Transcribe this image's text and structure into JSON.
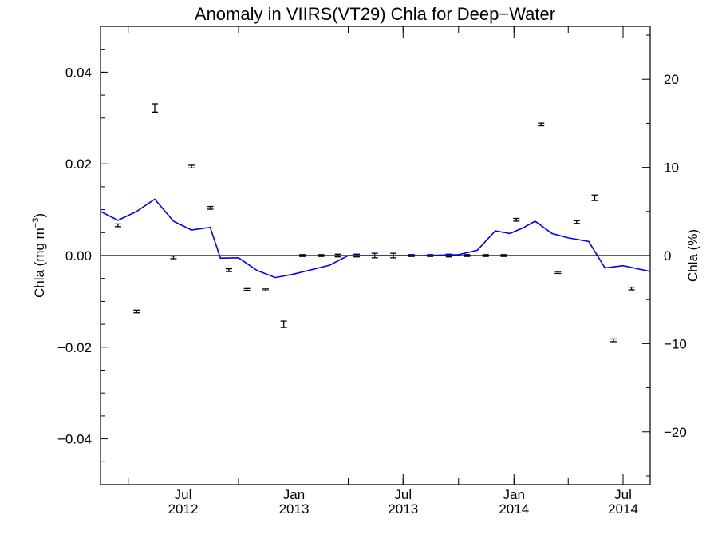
{
  "chart_data": {
    "type": "line",
    "title": "Anomaly in VIIRS(VT29) Chla for Deep−Water",
    "ylabel_left": {
      "base": "Chla (mg m",
      "sup": "−3",
      "close": ")"
    },
    "ylabel_right": "Chla (%)",
    "x_axis": {
      "range": [
        "2012-02-15",
        "2014-08-15"
      ],
      "tick_labels": [
        {
          "month": "Jul",
          "year": "2012",
          "date": "2012-07-01"
        },
        {
          "month": "Jan",
          "year": "2013",
          "date": "2013-01-01"
        },
        {
          "month": "Jul",
          "year": "2013",
          "date": "2013-07-01"
        },
        {
          "month": "Jan",
          "year": "2014",
          "date": "2014-01-01"
        },
        {
          "month": "Jul",
          "year": "2014",
          "date": "2014-07-01"
        }
      ],
      "minor_tick_dates": [
        "2012-04-01",
        "2012-07-01",
        "2012-10-01",
        "2013-01-01",
        "2013-04-01",
        "2013-07-01",
        "2013-10-01",
        "2014-01-01",
        "2014-04-01",
        "2014-07-01"
      ]
    },
    "y_left": {
      "range": [
        -0.05,
        0.05
      ],
      "ticks": [
        -0.04,
        -0.02,
        0.0,
        0.02,
        0.04
      ],
      "tick_labels": [
        "−0.04",
        "−0.02",
        "0.00",
        "0.02",
        "0.04"
      ]
    },
    "y_right": {
      "range": [
        -26,
        26
      ],
      "ticks": [
        -20,
        -10,
        0,
        10,
        20
      ],
      "tick_labels": [
        "−20",
        "−10",
        "0",
        "10",
        "20"
      ]
    },
    "zero_line": true,
    "series": [
      {
        "kind": "error_bars",
        "axis": "left",
        "color": "#000000",
        "points": [
          {
            "date": "2012-03-15",
            "y": 0.0066,
            "err": 0.0003
          },
          {
            "date": "2012-04-15",
            "y": -0.0122,
            "err": 0.0003
          },
          {
            "date": "2012-05-15",
            "y": 0.0322,
            "err": 0.0009
          },
          {
            "date": "2012-06-15",
            "y": -0.0004,
            "err": 0.0003
          },
          {
            "date": "2012-07-15",
            "y": 0.0194,
            "err": 0.0003
          },
          {
            "date": "2012-08-15",
            "y": 0.0104,
            "err": 0.0003
          },
          {
            "date": "2012-09-15",
            "y": -0.0032,
            "err": 0.0003
          },
          {
            "date": "2012-10-15",
            "y": -0.0074,
            "err": 0.0002
          },
          {
            "date": "2012-11-15",
            "y": -0.0075,
            "err": 0.0002
          },
          {
            "date": "2012-12-15",
            "y": -0.015,
            "err": 0.0007
          },
          {
            "date": "2013-01-15",
            "y": 0.0,
            "err": 0.0002
          },
          {
            "date": "2013-02-15",
            "y": 0.0,
            "err": 0.0002
          },
          {
            "date": "2013-03-15",
            "y": 0.0,
            "err": 0.0003
          },
          {
            "date": "2013-04-15",
            "y": 0.0,
            "err": 0.0003
          },
          {
            "date": "2013-05-15",
            "y": 0.0,
            "err": 0.0005
          },
          {
            "date": "2013-06-15",
            "y": 0.0,
            "err": 0.0005
          },
          {
            "date": "2013-07-15",
            "y": 0.0,
            "err": 0.0002
          },
          {
            "date": "2013-08-15",
            "y": 0.0,
            "err": 0.0002
          },
          {
            "date": "2013-09-15",
            "y": 0.0,
            "err": 0.0003
          },
          {
            "date": "2013-10-15",
            "y": 0.0,
            "err": 0.0002
          },
          {
            "date": "2013-11-15",
            "y": 0.0,
            "err": 0.0002
          },
          {
            "date": "2013-12-15",
            "y": 0.0,
            "err": 0.0002
          },
          {
            "date": "2014-01-05",
            "y": 0.0078,
            "err": 0.0003
          },
          {
            "date": "2014-02-15",
            "y": 0.0286,
            "err": 0.0003
          },
          {
            "date": "2014-03-15",
            "y": -0.0037,
            "err": 0.0002
          },
          {
            "date": "2014-04-15",
            "y": 0.0073,
            "err": 0.0003
          },
          {
            "date": "2014-05-15",
            "y": 0.0126,
            "err": 0.0006
          },
          {
            "date": "2014-06-15",
            "y": -0.0185,
            "err": 0.0003
          },
          {
            "date": "2014-07-15",
            "y": -0.0072,
            "err": 0.0003
          }
        ]
      },
      {
        "kind": "line",
        "axis": "right",
        "color": "#0000ff",
        "points": [
          {
            "date": "2012-02-15",
            "y": 5.0
          },
          {
            "date": "2012-03-15",
            "y": 4.0
          },
          {
            "date": "2012-04-15",
            "y": 5.0
          },
          {
            "date": "2012-05-15",
            "y": 6.4
          },
          {
            "date": "2012-06-15",
            "y": 3.9
          },
          {
            "date": "2012-07-15",
            "y": 2.9
          },
          {
            "date": "2012-08-15",
            "y": 3.2
          },
          {
            "date": "2012-09-01",
            "y": -0.3
          },
          {
            "date": "2012-10-01",
            "y": -0.25
          },
          {
            "date": "2012-11-01",
            "y": -1.7
          },
          {
            "date": "2012-12-01",
            "y": -2.5
          },
          {
            "date": "2013-01-01",
            "y": -2.1
          },
          {
            "date": "2013-03-01",
            "y": -1.1
          },
          {
            "date": "2013-04-01",
            "y": 0.0
          },
          {
            "date": "2013-06-01",
            "y": 0.0
          },
          {
            "date": "2013-08-01",
            "y": 0.0
          },
          {
            "date": "2013-10-01",
            "y": 0.1
          },
          {
            "date": "2013-11-01",
            "y": 0.6
          },
          {
            "date": "2013-12-01",
            "y": 2.8
          },
          {
            "date": "2013-12-25",
            "y": 2.5
          },
          {
            "date": "2014-01-15",
            "y": 3.1
          },
          {
            "date": "2014-02-05",
            "y": 3.9
          },
          {
            "date": "2014-03-05",
            "y": 2.5
          },
          {
            "date": "2014-04-01",
            "y": 2.0
          },
          {
            "date": "2014-05-05",
            "y": 1.6
          },
          {
            "date": "2014-06-01",
            "y": -1.4
          },
          {
            "date": "2014-07-01",
            "y": -1.15
          },
          {
            "date": "2014-08-15",
            "y": -1.8
          }
        ]
      }
    ]
  }
}
